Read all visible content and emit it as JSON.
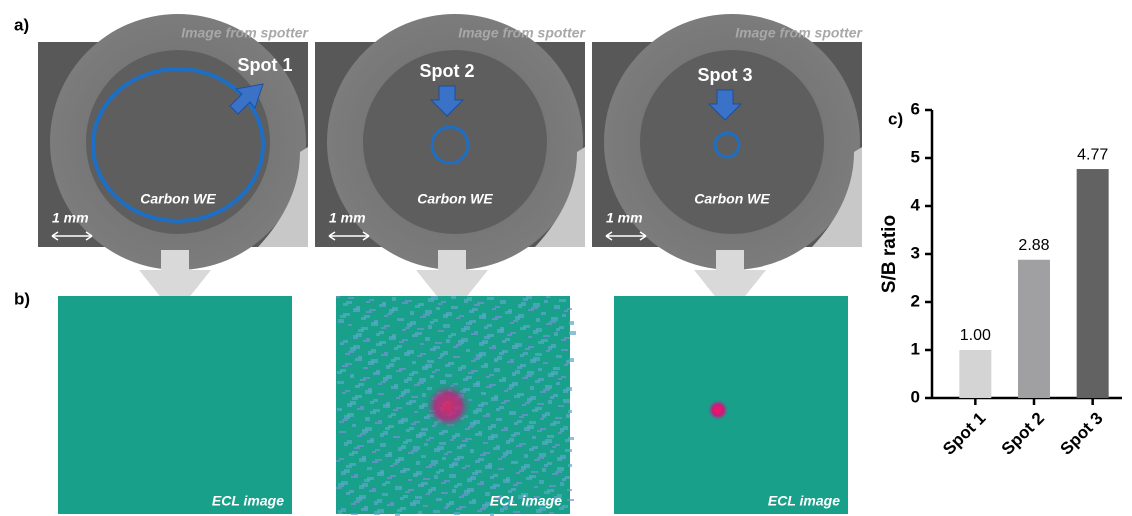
{
  "panel_a": {
    "label": "a)",
    "images": [
      {
        "source": "Image from spotter",
        "spot": "Spot 1",
        "electrode": "Carbon WE",
        "scale": "1 mm"
      },
      {
        "source": "Image from spotter",
        "spot": "Spot 2",
        "electrode": "Carbon WE",
        "scale": "1 mm"
      },
      {
        "source": "Image from spotter",
        "spot": "Spot 3",
        "electrode": "Carbon WE",
        "scale": "1 mm"
      }
    ]
  },
  "panel_b": {
    "label": "b)",
    "images": [
      {
        "caption": "ECL image"
      },
      {
        "caption": "ECL image"
      },
      {
        "caption": "ECL image"
      }
    ]
  },
  "chart_data": {
    "type": "bar",
    "panel_label": "c)",
    "y_label": "S/B ratio",
    "categories": [
      "Spot 1",
      "Spot 2",
      "Spot 3"
    ],
    "values": [
      1.0,
      2.88,
      4.77
    ],
    "value_labels": [
      "1.00",
      "2.88",
      "4.77"
    ],
    "colors": [
      "#d4d4d4",
      "#a0a0a2",
      "#626262"
    ],
    "ylim": [
      0,
      6
    ],
    "yticks": [
      0,
      1,
      2,
      3,
      4,
      5,
      6
    ]
  }
}
